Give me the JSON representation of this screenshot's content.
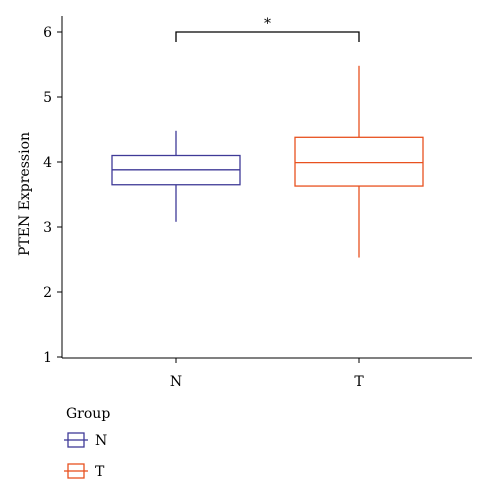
{
  "chart_data": {
    "type": "boxplot",
    "title": "",
    "xlabel": "",
    "ylabel": "PTEN Expression",
    "ylim": [
      1,
      6
    ],
    "y_ticks": [
      1,
      2,
      3,
      4,
      5,
      6
    ],
    "categories": [
      "N",
      "T"
    ],
    "series": [
      {
        "name": "N",
        "color": "#3f3a97",
        "whisker_low": 3.08,
        "q1": 3.65,
        "median": 3.88,
        "q3": 4.1,
        "whisker_high": 4.48
      },
      {
        "name": "T",
        "color": "#e8511f",
        "whisker_low": 2.53,
        "q1": 3.63,
        "median": 3.99,
        "q3": 4.38,
        "whisker_high": 5.48
      }
    ],
    "significance": {
      "label": "*",
      "between": [
        "N",
        "T"
      ],
      "y": 6.0
    },
    "legend": {
      "title": "Group",
      "position": "bottom-left",
      "entries": [
        "N",
        "T"
      ]
    },
    "grid": false
  }
}
